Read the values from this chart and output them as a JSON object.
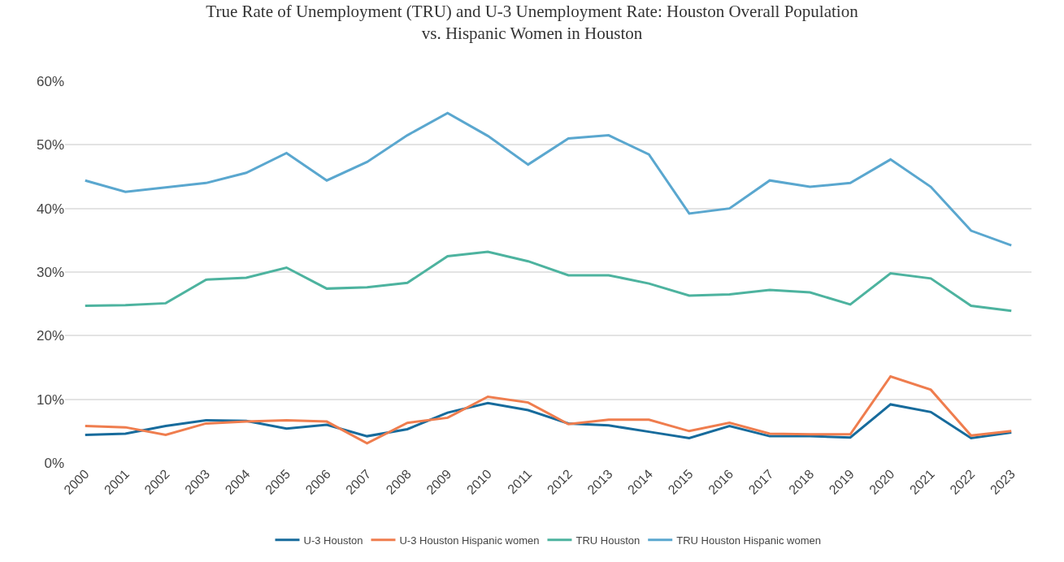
{
  "chart_data": {
    "type": "line",
    "title": "True Rate of Unemployment (TRU) and U-3 Unemployment Rate: Houston Overall Population\nvs. Hispanic Women in Houston",
    "categories": [
      "2000",
      "2001",
      "2002",
      "2003",
      "2004",
      "2005",
      "2006",
      "2007",
      "2008",
      "2009",
      "2010",
      "2011",
      "2012",
      "2013",
      "2014",
      "2015",
      "2016",
      "2017",
      "2018",
      "2019",
      "2020",
      "2021",
      "2022",
      "2023"
    ],
    "series": [
      {
        "name": "U-3 Houston",
        "color": "#176b9c",
        "values": [
          4.4,
          4.6,
          5.8,
          6.7,
          6.6,
          5.4,
          6.0,
          4.2,
          5.3,
          7.9,
          9.4,
          8.3,
          6.2,
          5.9,
          4.9,
          3.9,
          5.8,
          4.2,
          4.2,
          4.0,
          9.2,
          8.0,
          3.9,
          4.8
        ]
      },
      {
        "name": "U-3 Houston Hispanic women",
        "color": "#ef7d4e",
        "values": [
          5.8,
          5.6,
          4.4,
          6.2,
          6.5,
          6.7,
          6.5,
          3.1,
          6.3,
          7.1,
          10.4,
          9.5,
          6.1,
          6.8,
          6.8,
          5.0,
          6.3,
          4.6,
          4.5,
          4.5,
          13.6,
          11.5,
          4.3,
          5.0
        ]
      },
      {
        "name": "TRU Houston",
        "color": "#4db39f",
        "values": [
          24.7,
          24.8,
          25.1,
          28.8,
          29.1,
          30.7,
          27.4,
          27.6,
          28.3,
          32.5,
          33.2,
          31.7,
          29.5,
          29.5,
          28.2,
          26.3,
          26.5,
          27.2,
          26.8,
          24.9,
          29.8,
          29.0,
          24.7,
          23.9
        ]
      },
      {
        "name": "TRU Houston Hispanic women",
        "color": "#5aa7cf",
        "values": [
          44.4,
          42.6,
          43.3,
          44.0,
          45.6,
          48.7,
          44.4,
          47.3,
          51.5,
          55.0,
          51.4,
          46.9,
          51.0,
          51.5,
          48.5,
          39.2,
          40.0,
          44.4,
          43.4,
          44.0,
          47.7,
          43.4,
          36.5,
          34.2
        ]
      }
    ],
    "ylim": [
      0,
      60
    ],
    "yticks": [
      {
        "value": 0,
        "label": "0%"
      },
      {
        "value": 10,
        "label": "10%"
      },
      {
        "value": 20,
        "label": "20%"
      },
      {
        "value": 30,
        "label": "30%"
      },
      {
        "value": 40,
        "label": "40%"
      },
      {
        "value": 50,
        "label": "50%"
      },
      {
        "value": 60,
        "label": "60%"
      }
    ],
    "grid": "y",
    "legend": "bottom",
    "marker": "none",
    "line_style": "solid"
  }
}
